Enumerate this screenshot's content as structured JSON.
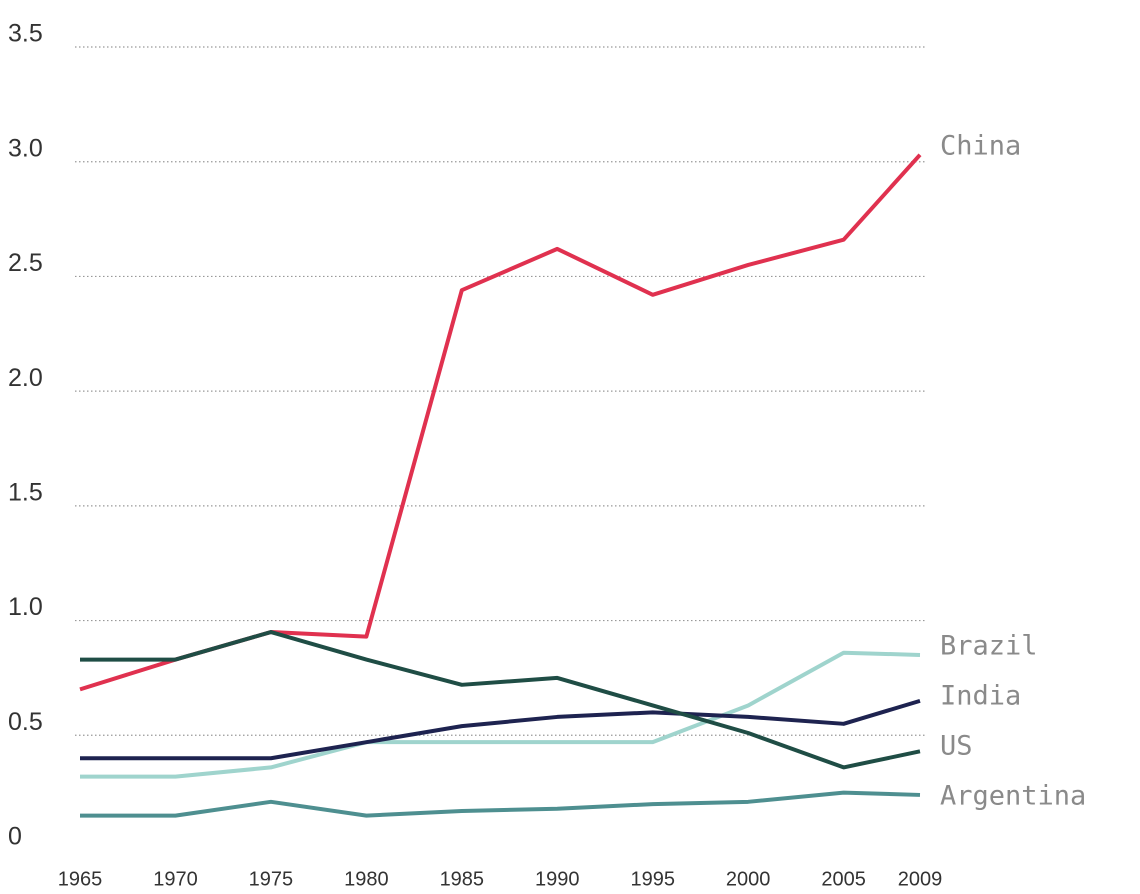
{
  "chart_data": {
    "type": "line",
    "x": [
      1965,
      1970,
      1975,
      1980,
      1985,
      1990,
      1995,
      2000,
      2005,
      2009
    ],
    "series": [
      {
        "name": "China",
        "color": "#e0314f",
        "values": [
          0.7,
          0.83,
          0.95,
          0.93,
          2.44,
          2.62,
          2.42,
          2.55,
          2.66,
          3.03
        ]
      },
      {
        "name": "Brazil",
        "color": "#9fd4cd",
        "values": [
          0.32,
          0.32,
          0.36,
          0.47,
          0.47,
          0.47,
          0.47,
          0.63,
          0.86,
          0.85
        ]
      },
      {
        "name": "India",
        "color": "#1e2350",
        "values": [
          0.4,
          0.4,
          0.4,
          0.47,
          0.54,
          0.58,
          0.6,
          0.58,
          0.55,
          0.65
        ]
      },
      {
        "name": "US",
        "color": "#1f4d45",
        "values": [
          0.83,
          0.83,
          0.95,
          0.83,
          0.72,
          0.75,
          0.63,
          0.51,
          0.36,
          0.43
        ]
      },
      {
        "name": "Argentina",
        "color": "#4e8f90",
        "values": [
          0.15,
          0.15,
          0.21,
          0.15,
          0.17,
          0.18,
          0.2,
          0.21,
          0.25,
          0.24
        ]
      }
    ],
    "xlim": [
      1965,
      2009
    ],
    "xticks": [
      1965,
      1970,
      1975,
      1980,
      1985,
      1990,
      1995,
      2000,
      2005,
      2009
    ],
    "ylim": [
      0,
      3.5
    ],
    "yticks": [
      0,
      0.5,
      {
        "value": 1,
        "label": "1.0"
      },
      1.5,
      {
        "value": 2,
        "label": "2.0"
      },
      2.5,
      {
        "value": 3,
        "label": "3.0"
      },
      3.5
    ],
    "grid": true
  }
}
